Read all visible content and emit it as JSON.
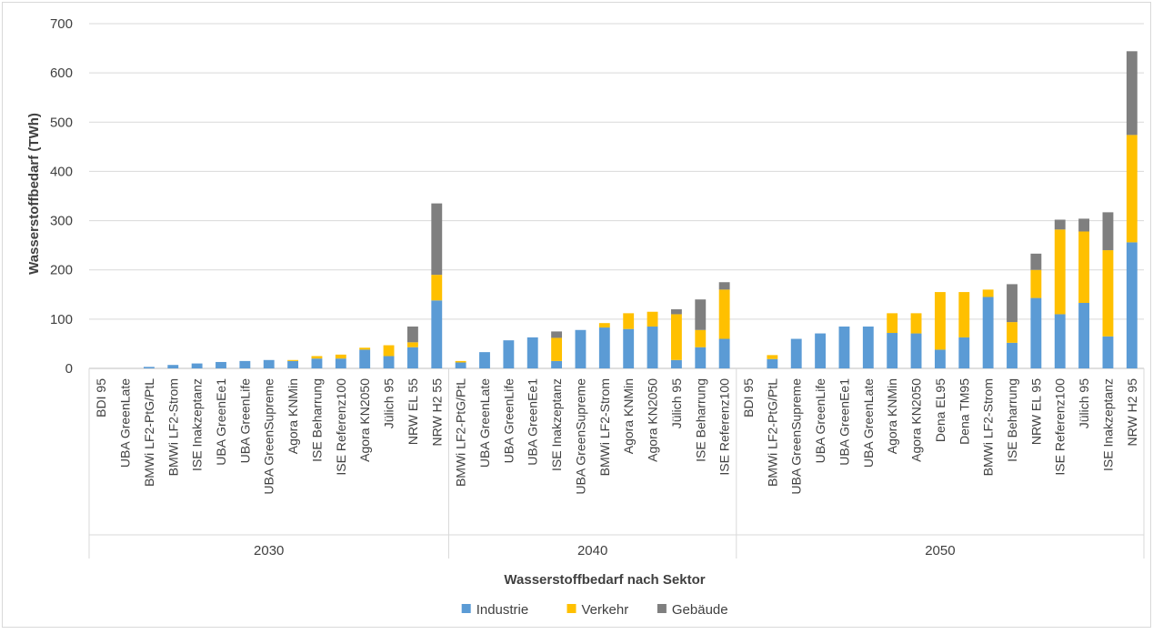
{
  "chart_data": {
    "type": "bar",
    "stacked": true,
    "ylabel": "Wasserstoffbedarf (TWh)",
    "xlabel": "Wasserstoffbedarf nach Sektor",
    "ylim": [
      0,
      700
    ],
    "yticks": [
      0,
      100,
      200,
      300,
      400,
      500,
      600,
      700
    ],
    "grid": true,
    "legend_position": "bottom",
    "colors": {
      "Industrie": "#5b9bd5",
      "Verkehr": "#ffc000",
      "Gebäude": "#7f7f7f"
    },
    "series_names": [
      "Industrie",
      "Verkehr",
      "Gebäude"
    ],
    "groups": [
      {
        "label": "2030",
        "categories": [
          "BDI 95",
          "UBA GreenLate",
          "BMWi LF2-PtG/PtL",
          "BMWi LF2-Strom",
          "ISE Inakzeptanz",
          "UBA GreenEe1",
          "UBA GreenLife",
          "UBA GreenSupreme",
          "Agora KNMin",
          "ISE Beharrung",
          "ISE Referenz100",
          "Agora KN2050",
          "Jülich 95",
          "NRW EL 55",
          "NRW H2 55"
        ],
        "series": [
          {
            "name": "Industrie",
            "values": [
              0,
              0,
              3,
              7,
              10,
              13,
              15,
              17,
              15,
              20,
              20,
              38,
              25,
              43,
              138
            ]
          },
          {
            "name": "Verkehr",
            "values": [
              0,
              0,
              0,
              0,
              0,
              0,
              0,
              0,
              2,
              5,
              8,
              4,
              22,
              10,
              52
            ]
          },
          {
            "name": "Gebäude",
            "values": [
              0,
              0,
              0,
              0,
              0,
              0,
              0,
              0,
              0,
              0,
              0,
              0,
              0,
              32,
              145
            ]
          }
        ]
      },
      {
        "label": "2040",
        "categories": [
          "BMWi LF2-PtG/PtL",
          "UBA GreenLate",
          "UBA GreenLife",
          "UBA GreenEe1",
          "ISE Inakzeptanz",
          "UBA GreenSupreme",
          "BMWi LF2-Strom",
          "Agora KNMin",
          "Agora KN2050",
          "Jülich 95",
          "ISE Beharrung",
          "ISE Referenz100"
        ],
        "series": [
          {
            "name": "Industrie",
            "values": [
              12,
              33,
              57,
              63,
              15,
              78,
              83,
              80,
              85,
              17,
              43,
              60
            ]
          },
          {
            "name": "Verkehr",
            "values": [
              3,
              0,
              0,
              0,
              47,
              0,
              9,
              32,
              30,
              93,
              35,
              100
            ]
          },
          {
            "name": "Gebäude",
            "values": [
              0,
              0,
              0,
              0,
              13,
              0,
              0,
              0,
              0,
              10,
              62,
              15
            ]
          }
        ]
      },
      {
        "label": "2050",
        "categories": [
          "BDI 95",
          "BMWi LF2-PtG/PtL",
          "UBA GreenSupreme",
          "UBA GreenLife",
          "UBA GreenEe1",
          "UBA GreenLate",
          "Agora KNMin",
          "Agora KN2050",
          "Dena EL95",
          "Dena TM95",
          "BMWi LF2-Strom",
          "ISE Beharrung",
          "NRW EL 95",
          "ISE Referenz100",
          "Jülich 95",
          "ISE Inakzeptanz",
          "NRW H2 95"
        ],
        "series": [
          {
            "name": "Industrie",
            "values": [
              0,
              19,
              60,
              71,
              85,
              85,
              72,
              71,
              38,
              63,
              145,
              52,
              143,
              110,
              133,
              65,
              256
            ]
          },
          {
            "name": "Verkehr",
            "values": [
              0,
              8,
              0,
              0,
              0,
              0,
              40,
              41,
              117,
              92,
              15,
              42,
              57,
              172,
              145,
              175,
              218
            ]
          },
          {
            "name": "Gebäude",
            "values": [
              0,
              0,
              0,
              0,
              0,
              0,
              0,
              0,
              0,
              0,
              0,
              77,
              33,
              20,
              26,
              77,
              170
            ]
          }
        ]
      }
    ]
  }
}
